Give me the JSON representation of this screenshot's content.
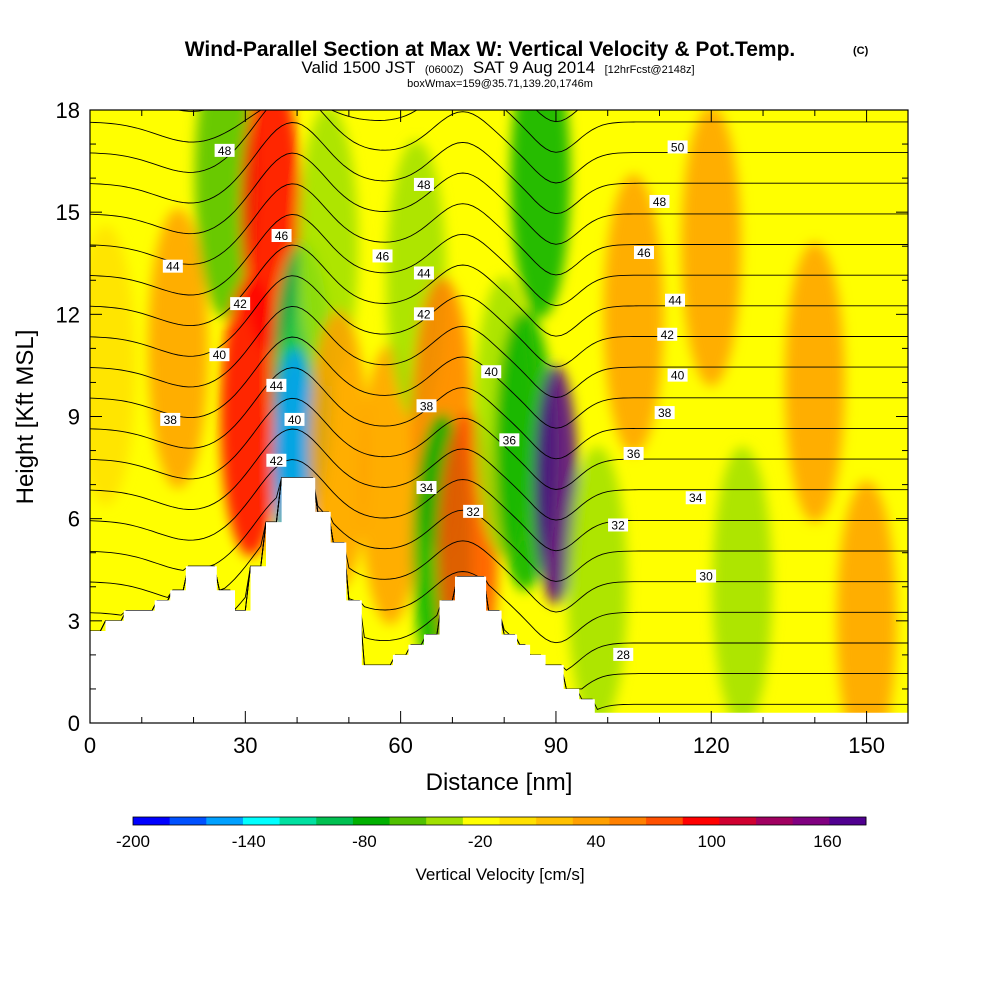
{
  "title": {
    "main": "Wind-Parallel Section at Max W: Vertical Velocity & Pot.Temp.",
    "copyright": "(C)",
    "valid_prefix": "Valid 1500 JST",
    "valid_z": "(0600Z)",
    "valid_date": "SAT 9 Aug 2014",
    "forecast": "[12hrFcst@2148z]",
    "box": "boxWmax=159@35.71,139.20,1746m"
  },
  "colors": {
    "background": "#ffff00",
    "terrain": "#ffffff",
    "axis": "#000000",
    "contour": "#000000"
  },
  "chart_data": {
    "type": "heatmap",
    "xlabel": "Distance [nm]",
    "ylabel": "Height [Kft MSL]",
    "xlim": [
      0,
      158
    ],
    "ylim": [
      0,
      18
    ],
    "x_ticks": [
      "0",
      "30",
      "60",
      "90",
      "120",
      "150"
    ],
    "x_tick_values": [
      0,
      30,
      60,
      90,
      120,
      150
    ],
    "y_ticks": [
      "0",
      "3",
      "6",
      "9",
      "12",
      "15",
      "18"
    ],
    "y_tick_values": [
      0,
      3,
      6,
      9,
      12,
      15,
      18
    ],
    "colorbar": {
      "title": "Vertical Velocity [cm/s]",
      "range": [
        -200,
        180
      ],
      "labels": [
        "-200",
        "-140",
        "-80",
        "-20",
        "40",
        "100",
        "160"
      ],
      "label_values": [
        -200,
        -140,
        -80,
        -20,
        40,
        100,
        160
      ],
      "colors": [
        "#0000ff",
        "#0050ff",
        "#00a0ff",
        "#00ffff",
        "#00e0a0",
        "#00c050",
        "#00b000",
        "#50c000",
        "#a0e000",
        "#ffff00",
        "#ffe000",
        "#ffc000",
        "#ffa000",
        "#ff8000",
        "#ff5000",
        "#ff0000",
        "#d00030",
        "#a00060",
        "#800080",
        "#500090"
      ]
    },
    "terrain_height_kft": [
      [
        0,
        2.7
      ],
      [
        3,
        2.7
      ],
      [
        3,
        3.0
      ],
      [
        6.5,
        3.0
      ],
      [
        6.5,
        3.3
      ],
      [
        12.5,
        3.3
      ],
      [
        12.5,
        3.6
      ],
      [
        15.5,
        3.6
      ],
      [
        15.5,
        3.9
      ],
      [
        18.5,
        3.9
      ],
      [
        18.5,
        4.6
      ],
      [
        24.5,
        4.6
      ],
      [
        24.5,
        3.9
      ],
      [
        28,
        3.9
      ],
      [
        28,
        3.3
      ],
      [
        31,
        3.3
      ],
      [
        31,
        4.6
      ],
      [
        34,
        4.6
      ],
      [
        34,
        5.9
      ],
      [
        37,
        5.9
      ],
      [
        37,
        7.2
      ],
      [
        43.5,
        7.2
      ],
      [
        43.5,
        6.2
      ],
      [
        46.5,
        6.2
      ],
      [
        46.5,
        5.3
      ],
      [
        49.5,
        5.3
      ],
      [
        49.5,
        3.6
      ],
      [
        52.5,
        3.6
      ],
      [
        52.5,
        1.7
      ],
      [
        58.5,
        1.7
      ],
      [
        58.5,
        2.0
      ],
      [
        61.5,
        2.0
      ],
      [
        61.5,
        2.3
      ],
      [
        64.5,
        2.3
      ],
      [
        64.5,
        2.6
      ],
      [
        67.5,
        2.6
      ],
      [
        67.5,
        3.6
      ],
      [
        70.5,
        3.6
      ],
      [
        70.5,
        4.3
      ],
      [
        76.5,
        4.3
      ],
      [
        76.5,
        3.3
      ],
      [
        79.5,
        3.3
      ],
      [
        79.5,
        2.6
      ],
      [
        82.5,
        2.6
      ],
      [
        82.5,
        2.3
      ],
      [
        85,
        2.3
      ],
      [
        85,
        2.0
      ],
      [
        88,
        2.0
      ],
      [
        88,
        1.7
      ],
      [
        91.5,
        1.7
      ],
      [
        91.5,
        1.0
      ],
      [
        94.5,
        1.0
      ],
      [
        94.5,
        0.7
      ],
      [
        97.5,
        0.7
      ],
      [
        97.5,
        0.3
      ],
      [
        158,
        0.3
      ]
    ],
    "vertical_velocity_cells": [
      {
        "x": 3,
        "y": 10.5,
        "w": -10
      },
      {
        "x": 17,
        "y": 11,
        "w": 45
      },
      {
        "x": 26,
        "y": 16,
        "w": -50
      },
      {
        "x": 31,
        "y": 9,
        "w": 100
      },
      {
        "x": 35,
        "y": 15,
        "w": 95
      },
      {
        "x": 41,
        "y": 10,
        "w": -90
      },
      {
        "x": 39.5,
        "y": 7.5,
        "w": -150
      },
      {
        "x": 46,
        "y": 14,
        "w": -40
      },
      {
        "x": 48,
        "y": 8,
        "w": 40
      },
      {
        "x": 58,
        "y": 7,
        "w": 40
      },
      {
        "x": 63,
        "y": 13,
        "w": -30
      },
      {
        "x": 68,
        "y": 9,
        "w": 50
      },
      {
        "x": 68,
        "y": 5,
        "w": -80
      },
      {
        "x": 73,
        "y": 5,
        "w": 70
      },
      {
        "x": 80,
        "y": 9,
        "w": -30
      },
      {
        "x": 84,
        "y": 8,
        "w": -70
      },
      {
        "x": 90,
        "y": 7,
        "w": 180
      },
      {
        "x": 87,
        "y": 16,
        "w": -70
      },
      {
        "x": 98,
        "y": 4,
        "w": -40
      },
      {
        "x": 105,
        "y": 12,
        "w": 45
      },
      {
        "x": 120,
        "y": 14,
        "w": 40
      },
      {
        "x": 126,
        "y": 4,
        "w": -30
      },
      {
        "x": 140,
        "y": 10,
        "w": 40
      },
      {
        "x": 150,
        "y": 3,
        "w": 40
      }
    ],
    "contour_labels": [
      {
        "text": "48",
        "x": 26,
        "y": 16.8
      },
      {
        "text": "46",
        "x": 37,
        "y": 14.3
      },
      {
        "text": "44",
        "x": 16,
        "y": 13.4
      },
      {
        "text": "42",
        "x": 29,
        "y": 12.3
      },
      {
        "text": "40",
        "x": 25,
        "y": 10.8
      },
      {
        "text": "44",
        "x": 36,
        "y": 9.9
      },
      {
        "text": "40",
        "x": 39.5,
        "y": 8.9
      },
      {
        "text": "42",
        "x": 36,
        "y": 7.7
      },
      {
        "text": "38",
        "x": 15.5,
        "y": 8.9
      },
      {
        "text": "48",
        "x": 64.5,
        "y": 15.8
      },
      {
        "text": "46",
        "x": 56.5,
        "y": 13.7
      },
      {
        "text": "44",
        "x": 64.5,
        "y": 13.2
      },
      {
        "text": "42",
        "x": 64.5,
        "y": 12.0
      },
      {
        "text": "40",
        "x": 77.5,
        "y": 10.3
      },
      {
        "text": "38",
        "x": 65,
        "y": 9.3
      },
      {
        "text": "36",
        "x": 81,
        "y": 8.3
      },
      {
        "text": "34",
        "x": 65,
        "y": 6.9
      },
      {
        "text": "32",
        "x": 74,
        "y": 6.2
      },
      {
        "text": "50",
        "x": 113.5,
        "y": 16.9
      },
      {
        "text": "48",
        "x": 110,
        "y": 15.3
      },
      {
        "text": "46",
        "x": 107,
        "y": 13.8
      },
      {
        "text": "44",
        "x": 113,
        "y": 12.4
      },
      {
        "text": "42",
        "x": 111.5,
        "y": 11.4
      },
      {
        "text": "40",
        "x": 113.5,
        "y": 10.2
      },
      {
        "text": "38",
        "x": 111,
        "y": 9.1
      },
      {
        "text": "36",
        "x": 105,
        "y": 7.9
      },
      {
        "text": "34",
        "x": 117,
        "y": 6.6
      },
      {
        "text": "32",
        "x": 102,
        "y": 5.8
      },
      {
        "text": "30",
        "x": 119,
        "y": 4.3
      },
      {
        "text": "28",
        "x": 103,
        "y": 2.0
      }
    ],
    "theta_levels": [
      26,
      27,
      28,
      29,
      30,
      31,
      32,
      33,
      34,
      35,
      36,
      37,
      38,
      39,
      40,
      41,
      42,
      43,
      44,
      45,
      46,
      47,
      48,
      49,
      50,
      51,
      52
    ]
  }
}
